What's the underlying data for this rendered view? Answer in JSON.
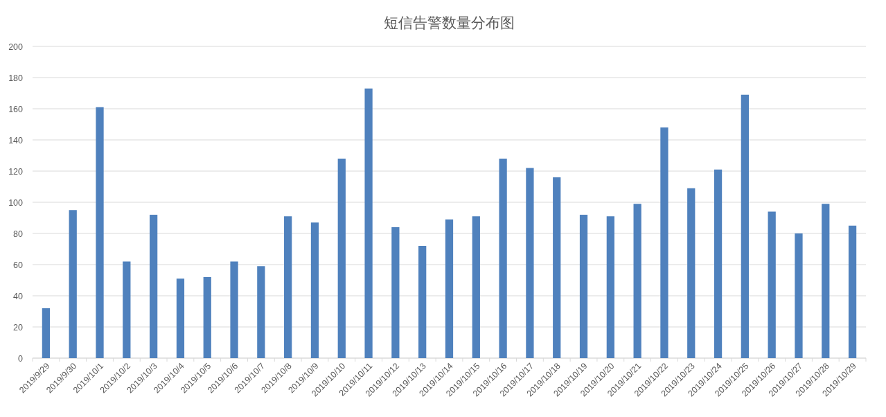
{
  "chart_data": {
    "type": "bar",
    "title": "短信告警数量分布图",
    "categories": [
      "2019/9/29",
      "2019/9/30",
      "2019/10/1",
      "2019/10/2",
      "2019/10/3",
      "2019/10/4",
      "2019/10/5",
      "2019/10/6",
      "2019/10/7",
      "2019/10/8",
      "2019/10/9",
      "2019/10/10",
      "2019/10/11",
      "2019/10/12",
      "2019/10/13",
      "2019/10/14",
      "2019/10/15",
      "2019/10/16",
      "2019/10/17",
      "2019/10/18",
      "2019/10/19",
      "2019/10/20",
      "2019/10/21",
      "2019/10/22",
      "2019/10/23",
      "2019/10/24",
      "2019/10/25",
      "2019/10/26",
      "2019/10/27",
      "2019/10/28",
      "2019/10/29"
    ],
    "values": [
      32,
      95,
      161,
      62,
      92,
      51,
      52,
      62,
      59,
      91,
      87,
      128,
      173,
      84,
      72,
      89,
      91,
      128,
      122,
      116,
      92,
      91,
      99,
      148,
      109,
      121,
      169,
      94,
      80,
      99,
      85
    ],
    "color": "#4f81bd",
    "ylim": [
      0,
      200
    ],
    "yticks": [
      0,
      20,
      40,
      60,
      80,
      100,
      120,
      140,
      160,
      180,
      200
    ],
    "grid": "y"
  }
}
